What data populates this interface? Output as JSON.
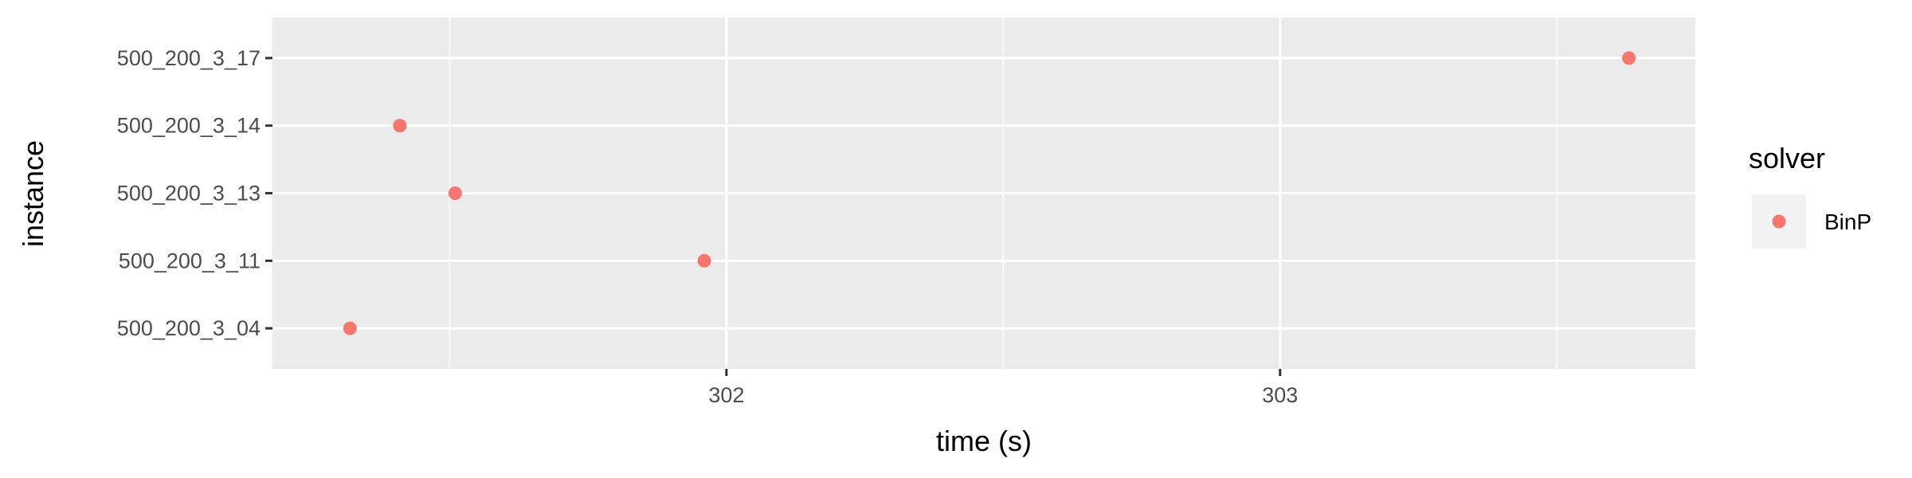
{
  "chart_data": {
    "type": "scatter",
    "xlabel": "time (s)",
    "ylabel": "instance",
    "xlim": [
      301.18,
      303.75
    ],
    "x_ticks": [
      302,
      303
    ],
    "x_tick_labels": [
      "302",
      "303"
    ],
    "x_minor": [
      301.5,
      302.5,
      303.5
    ],
    "categories": [
      "500_200_3_04",
      "500_200_3_11",
      "500_200_3_13",
      "500_200_3_14",
      "500_200_3_17"
    ],
    "grid": true,
    "legend": {
      "title": "solver",
      "position": "right",
      "entries": [
        "BinP"
      ]
    },
    "series": [
      {
        "name": "BinP",
        "color": "#F8766D",
        "points": [
          {
            "y": "500_200_3_17",
            "x": 303.63
          },
          {
            "y": "500_200_3_14",
            "x": 301.41
          },
          {
            "y": "500_200_3_13",
            "x": 301.51
          },
          {
            "y": "500_200_3_11",
            "x": 301.96
          },
          {
            "y": "500_200_3_04",
            "x": 301.32
          }
        ]
      }
    ]
  }
}
